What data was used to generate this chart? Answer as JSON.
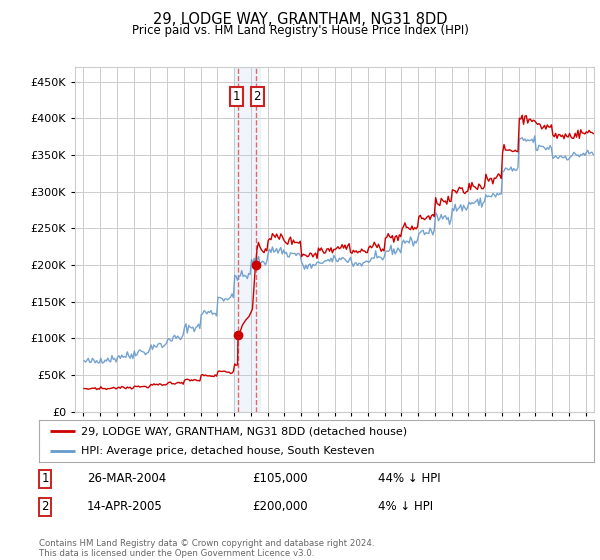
{
  "title": "29, LODGE WAY, GRANTHAM, NG31 8DD",
  "subtitle": "Price paid vs. HM Land Registry's House Price Index (HPI)",
  "footer": "Contains HM Land Registry data © Crown copyright and database right 2024.\nThis data is licensed under the Open Government Licence v3.0.",
  "legend_line1": "29, LODGE WAY, GRANTHAM, NG31 8DD (detached house)",
  "legend_line2": "HPI: Average price, detached house, South Kesteven",
  "transaction1_date": "26-MAR-2004",
  "transaction1_price": 105000,
  "transaction1_hpi": "44% ↓ HPI",
  "transaction2_date": "14-APR-2005",
  "transaction2_price": 200000,
  "transaction2_hpi": "4% ↓ HPI",
  "red_line_color": "#cc0000",
  "blue_line_color": "#6699cc",
  "bg_color": "#ffffff",
  "grid_color": "#cccccc",
  "vline_color": "#dd4444",
  "trans1_x": 2004.24,
  "trans2_x": 2005.29,
  "trans1_y": 105000,
  "trans2_y": 200000,
  "ylim": [
    0,
    470000
  ],
  "yticks": [
    0,
    50000,
    100000,
    150000,
    200000,
    250000,
    300000,
    350000,
    400000,
    450000
  ],
  "xlim_left": 1994.5,
  "xlim_right": 2025.5
}
